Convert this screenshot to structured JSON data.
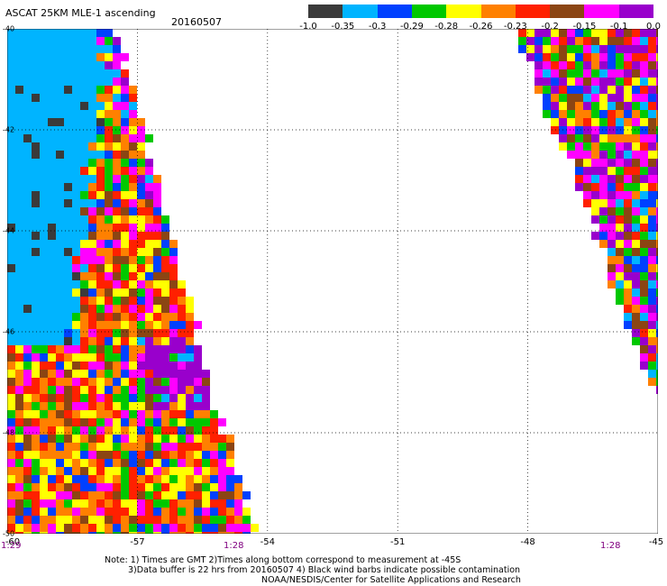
{
  "header": {
    "title": "ASCAT 25KM MLE-1 ascending",
    "date": "20160507"
  },
  "color_scale": {
    "labels": [
      "-1.0",
      "-0.35",
      "-0.3",
      "-0.29",
      "-0.28",
      "-0.26",
      "-0.23",
      "-0.2",
      "-0.15",
      "-0.1",
      "0.0"
    ],
    "colors": [
      "#3a3a3a",
      "#00b4ff",
      "#0040ff",
      "#00c800",
      "#ffff00",
      "#ff8000",
      "#ff2000",
      "#8b4513",
      "#ff00ff",
      "#9900cc"
    ]
  },
  "map": {
    "lat_labels": [
      "-40",
      "-42",
      "-44",
      "-46",
      "-48",
      "-50"
    ],
    "lon_labels": [
      "-60",
      "-57",
      "-54",
      "-51",
      "-48",
      "-45"
    ],
    "time_left": "1:29",
    "time_mid": "1:28",
    "time_right": "1:28"
  },
  "notes": [
    "Note: 1) Times are GMT 2)Times along bottom correspond to measurement at -45S",
    "3)Data buffer is 22 hrs from 20160507 4) Black wind barbs indicate possible contamination",
    "NOAA/NESDIS/Center for Satellite Applications and Research"
  ]
}
